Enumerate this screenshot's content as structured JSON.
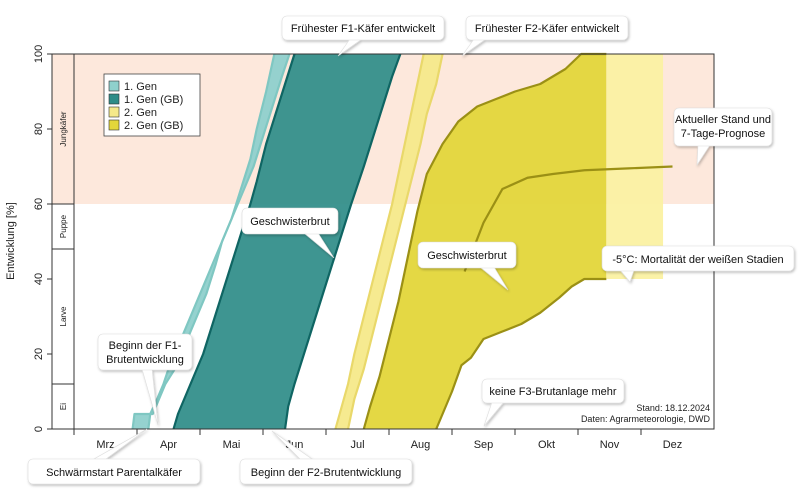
{
  "chart_data": {
    "type": "area",
    "ylabel": "Entwicklung [%]",
    "ylim": [
      0,
      100
    ],
    "yticks": [
      0,
      20,
      40,
      60,
      80,
      100
    ],
    "months": [
      "Mrz",
      "Apr",
      "Mai",
      "Jun",
      "Jul",
      "Aug",
      "Sep",
      "Okt",
      "Nov",
      "Dez"
    ],
    "stages": [
      "Ei",
      "Larve",
      "Puppe",
      "Jungkäfer"
    ],
    "stage_bounds": [
      0,
      12,
      48,
      60,
      100
    ],
    "legend_position": "top-left",
    "legend": [
      {
        "label": "1. Gen",
        "color": "#8fd0cc"
      },
      {
        "label": "1. Gen (GB)",
        "color": "#2e8c88"
      },
      {
        "label": "2. Gen",
        "color": "#f5e98a"
      },
      {
        "label": "2. Gen (GB)",
        "color": "#e3d63a"
      }
    ],
    "series": [
      {
        "name": "1. Gen",
        "color": "#8fd0cc",
        "lower": [
          [
            3.88,
            0
          ],
          [
            3.91,
            4
          ],
          [
            4.02,
            8
          ],
          [
            4.12,
            12
          ],
          [
            4.2,
            16
          ],
          [
            4.3,
            20
          ],
          [
            4.45,
            26
          ],
          [
            4.6,
            32
          ],
          [
            4.75,
            38
          ],
          [
            4.9,
            44
          ],
          [
            5.05,
            50
          ],
          [
            5.2,
            56
          ],
          [
            5.4,
            64
          ],
          [
            5.55,
            70
          ],
          [
            5.7,
            78
          ],
          [
            5.85,
            86
          ],
          [
            6.0,
            94
          ],
          [
            6.12,
            100
          ]
        ],
        "upper": [
          [
            3.63,
            0
          ],
          [
            3.66,
            4
          ],
          [
            3.95,
            4
          ],
          [
            4.05,
            8
          ],
          [
            4.15,
            12
          ],
          [
            4.3,
            16
          ],
          [
            4.5,
            24
          ],
          [
            4.65,
            30
          ],
          [
            4.8,
            36
          ],
          [
            4.95,
            44
          ],
          [
            5.05,
            50
          ],
          [
            5.2,
            56
          ],
          [
            5.35,
            64
          ],
          [
            5.5,
            72
          ],
          [
            5.6,
            80
          ],
          [
            5.75,
            90
          ],
          [
            5.88,
            100
          ]
        ]
      },
      {
        "name": "1. Gen (GB)",
        "color": "#2e8c88",
        "lower": [
          [
            6.05,
            0
          ],
          [
            6.1,
            6
          ],
          [
            6.2,
            12
          ],
          [
            6.35,
            20
          ],
          [
            6.5,
            28
          ],
          [
            6.65,
            36
          ],
          [
            6.8,
            44
          ],
          [
            6.95,
            52
          ],
          [
            7.1,
            60
          ],
          [
            7.3,
            70
          ],
          [
            7.45,
            78
          ],
          [
            7.6,
            86
          ],
          [
            7.75,
            94
          ],
          [
            7.88,
            100
          ]
        ],
        "upper": [
          [
            4.28,
            0
          ],
          [
            4.35,
            4
          ],
          [
            4.5,
            10
          ],
          [
            4.6,
            14
          ],
          [
            4.75,
            20
          ],
          [
            4.9,
            28
          ],
          [
            5.05,
            36
          ],
          [
            5.2,
            44
          ],
          [
            5.35,
            52
          ],
          [
            5.5,
            60
          ],
          [
            5.6,
            66
          ],
          [
            5.75,
            76
          ],
          [
            5.9,
            84
          ],
          [
            6.05,
            92
          ],
          [
            6.2,
            100
          ]
        ]
      },
      {
        "name": "2. Gen",
        "color": "#f5e98a",
        "lower": [
          [
            7.05,
            0
          ],
          [
            7.15,
            8
          ],
          [
            7.3,
            16
          ],
          [
            7.45,
            26
          ],
          [
            7.6,
            36
          ],
          [
            7.75,
            46
          ],
          [
            7.9,
            56
          ],
          [
            8.05,
            66
          ],
          [
            8.2,
            76
          ],
          [
            8.3,
            84
          ],
          [
            8.45,
            92
          ],
          [
            8.55,
            100
          ]
        ],
        "upper": [
          [
            6.85,
            0
          ],
          [
            6.95,
            6
          ],
          [
            7.05,
            12
          ],
          [
            7.15,
            20
          ],
          [
            7.3,
            30
          ],
          [
            7.45,
            40
          ],
          [
            7.6,
            50
          ],
          [
            7.75,
            60
          ],
          [
            7.9,
            72
          ],
          [
            8.05,
            84
          ],
          [
            8.2,
            96
          ],
          [
            8.25,
            100
          ]
        ]
      },
      {
        "name": "2. Gen (GB)",
        "color": "#e3d63a",
        "lower": [
          [
            8.45,
            0
          ],
          [
            8.55,
            4
          ],
          [
            8.7,
            10
          ],
          [
            8.85,
            17
          ],
          [
            9.0,
            19
          ],
          [
            9.2,
            24
          ],
          [
            9.5,
            26
          ],
          [
            9.8,
            28
          ],
          [
            10.1,
            31
          ],
          [
            10.4,
            35
          ],
          [
            10.6,
            38
          ],
          [
            10.8,
            40
          ],
          [
            11.15,
            40
          ]
        ],
        "upper": [
          [
            7.3,
            0
          ],
          [
            7.4,
            6
          ],
          [
            7.55,
            14
          ],
          [
            7.7,
            24
          ],
          [
            7.85,
            34
          ],
          [
            8.0,
            46
          ],
          [
            8.15,
            58
          ],
          [
            8.3,
            68
          ],
          [
            8.55,
            76
          ],
          [
            8.8,
            82
          ],
          [
            9.1,
            86
          ],
          [
            9.4,
            88
          ],
          [
            9.7,
            90
          ],
          [
            10.1,
            92
          ],
          [
            10.5,
            96
          ],
          [
            10.75,
            100
          ],
          [
            11.15,
            100
          ]
        ]
      },
      {
        "name": "prognose",
        "color": "#fbf1a2",
        "lower": [
          [
            11.15,
            40
          ],
          [
            12.05,
            40
          ]
        ],
        "upper": [
          [
            11.15,
            100
          ],
          [
            12.05,
            100
          ]
        ]
      }
    ],
    "current_line": [
      [
        8.9,
        42
      ],
      [
        9.2,
        55
      ],
      [
        9.5,
        64
      ],
      [
        9.9,
        67
      ],
      [
        10.3,
        68
      ],
      [
        10.8,
        69
      ],
      [
        11.5,
        69.5
      ],
      [
        12.2,
        70
      ]
    ],
    "annotations": [
      {
        "label": "Schwärmstart Parentalkäfer",
        "x": 3.63,
        "y": 0
      },
      {
        "label": "Beginn der F1- Brutentwicklung",
        "x": 3.88,
        "y": 2
      },
      {
        "label": "Beginn der F2-Brutentwicklung",
        "x": 5.65,
        "y": 0
      },
      {
        "label": "Frühester F1-Käfer entwickelt",
        "x": 5.88,
        "y": 100
      },
      {
        "label": "Frühester F2-Käfer entwickelt",
        "x": 8.25,
        "y": 100
      },
      {
        "label": "Geschwisterbrut",
        "x": 6.45,
        "y": 46
      },
      {
        "label": "Geschwisterbrut",
        "x": 9.2,
        "y": 37
      },
      {
        "label": "Aktueller Stand und 7-Tage-Prognose",
        "x": 12.2,
        "y": 70
      },
      {
        "label": "-5°C: Mortalität der weißen Stadien",
        "x": 11.15,
        "y": 40
      },
      {
        "label": "keine F3-Brutanlage mehr",
        "x": 9.0,
        "y": 0
      }
    ]
  },
  "texts": {
    "callout_schwaermstart": "Schwärmstart Parentalkäfer",
    "callout_beginn_f1_line1": "Beginn der F1-",
    "callout_beginn_f1_line2": "Brutentwicklung",
    "callout_beginn_f2": "Beginn der F2-Brutentwicklung",
    "callout_fruehester_f1": "Frühester F1-Käfer entwickelt",
    "callout_fruehester_f2": "Frühester F2-Käfer entwickelt",
    "callout_geschwisterbrut_1": "Geschwisterbrut",
    "callout_geschwisterbrut_2": "Geschwisterbrut",
    "callout_aktuell_line1": "Aktueller Stand und",
    "callout_aktuell_line2": "7-Tage-Prognose",
    "callout_mortalitaet": "-5°C: Mortalität der weißen Stadien",
    "callout_keine_f3": "keine F3-Brutanlage mehr",
    "stand": "Stand: 18.12.2024",
    "daten": "Daten: Agrarmeteorologie, DWD"
  },
  "colors": {
    "jungkaefer_bg": "#fde8dc",
    "gen1_border": "#7fc7c2",
    "gen1gb_border": "#0f6563",
    "gen2_border": "#e9d86a",
    "gen2gb_border": "#9b9015",
    "current_line": "#9b9015"
  }
}
